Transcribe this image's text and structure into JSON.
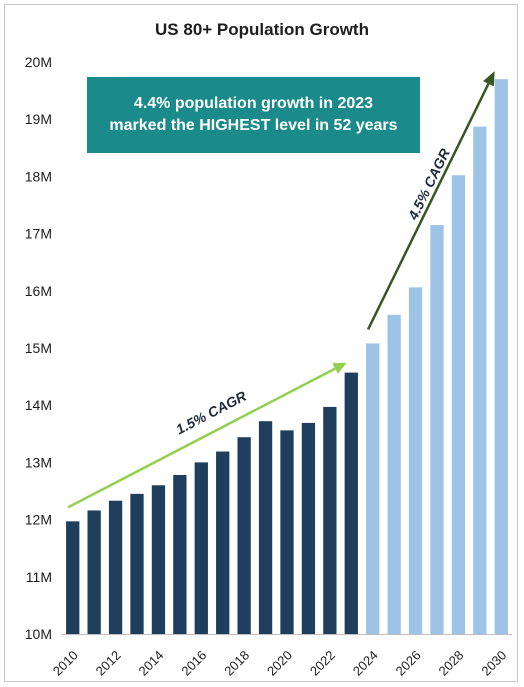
{
  "chart_data": {
    "type": "bar",
    "title": "US 80+ Population Growth",
    "xlabel": "",
    "ylabel": "",
    "ylim": [
      10,
      20
    ],
    "y_unit_suffix": "M",
    "y_ticks": [
      "10M",
      "11M",
      "12M",
      "13M",
      "14M",
      "15M",
      "16M",
      "17M",
      "18M",
      "19M",
      "20M"
    ],
    "x_tick_labels": [
      "2010",
      "2012",
      "2014",
      "2016",
      "2018",
      "2020",
      "2022",
      "2024",
      "2026",
      "2028",
      "2030"
    ],
    "categories": [
      "2010",
      "2011",
      "2012",
      "2013",
      "2014",
      "2015",
      "2016",
      "2017",
      "2018",
      "2019",
      "2020",
      "2021",
      "2022",
      "2023",
      "2024",
      "2025",
      "2026",
      "2027",
      "2028",
      "2029",
      "2030"
    ],
    "series": [
      {
        "values": [
          11.97,
          12.16,
          12.33,
          12.45,
          12.6,
          12.78,
          13.0,
          13.19,
          13.44,
          13.72,
          13.56,
          13.69,
          13.97,
          14.57,
          null,
          null,
          null,
          null,
          null,
          null,
          null
        ],
        "color": "#1f3d5c"
      },
      {
        "values": [
          null,
          null,
          null,
          null,
          null,
          null,
          null,
          null,
          null,
          null,
          null,
          null,
          null,
          null,
          15.08,
          15.58,
          16.06,
          17.15,
          18.02,
          18.87,
          19.7
        ],
        "color": "#9dc3e6"
      }
    ],
    "annotations": [
      {
        "text": "1.5% CAGR",
        "color": "#92d050"
      },
      {
        "text": "4.5% CAGR",
        "color": "#375623"
      }
    ],
    "callout": {
      "line1": "4.4% population growth in 2023",
      "line2": "marked the HIGHEST level in 52 years",
      "color": "#1a8a8a"
    },
    "grid": false
  }
}
